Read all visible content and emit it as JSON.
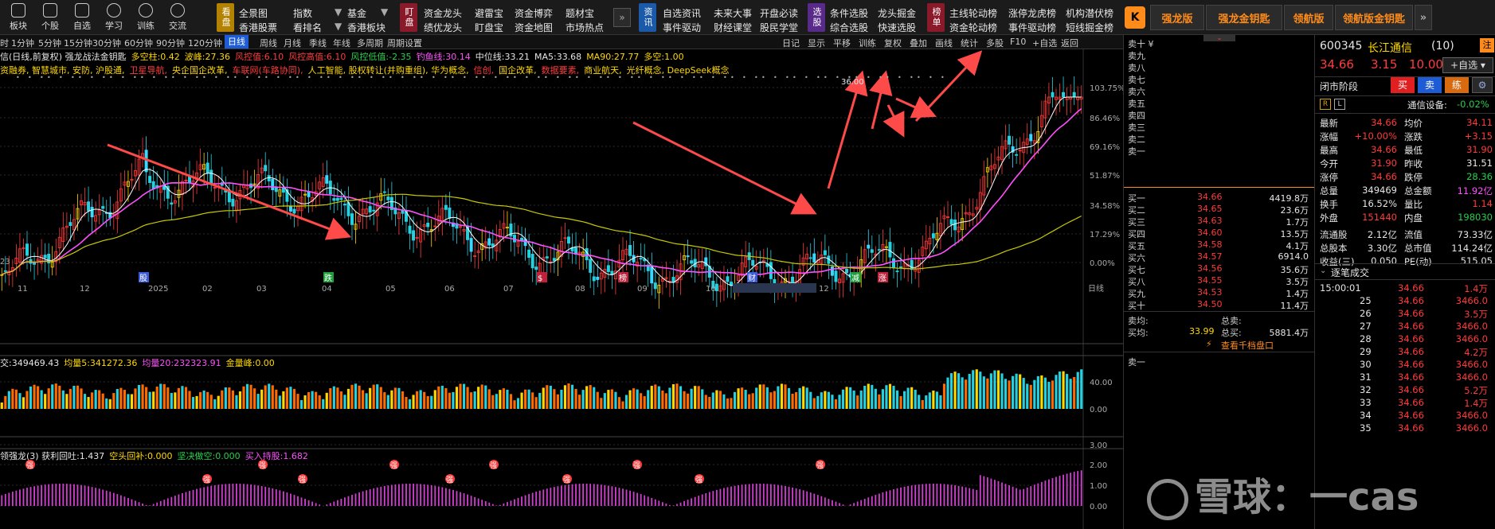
{
  "toolbar": {
    "buttons": [
      "板块",
      "个股",
      "自选",
      "学习",
      "训练",
      "交流"
    ],
    "menu_group1": {
      "tag": "看盘",
      "row1": [
        "全景图",
        "指数",
        "基金"
      ],
      "row2": [
        "香港股票",
        "看排名",
        "香港板块"
      ]
    },
    "menu_group2": {
      "tag": "盯盘",
      "row1": [
        "资金龙头",
        "避雷宝",
        "资金博弈",
        "题材宝"
      ],
      "row2": [
        "绩优龙头",
        "盯盘宝",
        "资金地图",
        "市场热点"
      ]
    },
    "menu_group3": {
      "tag": "资讯",
      "row1": [
        "自选资讯",
        "未来大事",
        "开盘必读"
      ],
      "row2": [
        "事件驱动",
        "财经课堂",
        "股民学堂"
      ]
    },
    "menu_group4": {
      "tag": "选股",
      "row1": [
        "条件选股",
        "龙头掘金"
      ],
      "row2": [
        "综合选股",
        "快速选股"
      ]
    },
    "menu_group5": {
      "tag": "榜单",
      "row1": [
        "主线轮动榜",
        "涨停龙虎榜",
        "机构潜伏榜"
      ],
      "row2": [
        "资金轮动榜",
        "事件驱动榜",
        "短线掘金榜"
      ]
    },
    "right_buttons": [
      "强龙版",
      "强龙金钥匙",
      "领航版",
      "领航版金钥匙"
    ]
  },
  "periods": {
    "left": [
      "时",
      "1分钟",
      "5分钟",
      "15分钟",
      "30分钟",
      "60分钟",
      "90分钟",
      "120分钟",
      "日线",
      "周线",
      "月线",
      "季线",
      "年线",
      "多周期",
      "周期设置"
    ],
    "active": "日线",
    "right": [
      "日记",
      "显示",
      "平移",
      "训练",
      "复权",
      "叠加",
      "画线",
      "统计",
      "多股",
      "F10",
      "+自选",
      "返回"
    ]
  },
  "indicator_line1": [
    {
      "text": "信(日线,前复权) 强龙战法金钥匙",
      "color": "#e6e6e6"
    },
    {
      "text": "多空柱:0.42",
      "color": "#ffd800"
    },
    {
      "text": "波峰:27.36",
      "color": "#ffd800"
    },
    {
      "text": "风控值:6.10",
      "color": "#ff3b3b"
    },
    {
      "text": "风控高值:6.10",
      "color": "#ff3b3b"
    },
    {
      "text": "风控低值:-2.35",
      "color": "#25d14a"
    },
    {
      "text": "钓鱼线:30.14",
      "color": "#ff50ff"
    },
    {
      "text": "中位线:33.21",
      "color": "#e6e6e6"
    },
    {
      "text": "MA5:33.68",
      "color": "#e6e6e6"
    },
    {
      "text": "MA90:27.77",
      "color": "#ffd800"
    },
    {
      "text": "多空:1.00",
      "color": "#ffd800"
    }
  ],
  "indicator_line2": [
    {
      "text": "资融券, 智慧城市, 安防, 沪股通,",
      "color": "#ffd800"
    },
    {
      "text": "卫星导航,",
      "color": "#ff3b3b"
    },
    {
      "text": "央企国企改革,",
      "color": "#ffd800"
    },
    {
      "text": "车联网(车路协同),",
      "color": "#ff3b3b"
    },
    {
      "text": "人工智能, 股权转让(并购重组), 华为概念,",
      "color": "#ffd800"
    },
    {
      "text": "信创,",
      "color": "#ff3b3b"
    },
    {
      "text": "国企改革,",
      "color": "#ffd800"
    },
    {
      "text": "数据要素,",
      "color": "#ff3b3b"
    },
    {
      "text": "商业航天,",
      "color": "#ffd800"
    },
    {
      "text": "光纤概念, DeepSeek概念",
      "color": "#ffd800"
    }
  ],
  "price_axis": [
    "103.75%",
    "86.46%",
    "69.16%",
    "51.87%",
    "34.58%",
    "17.29%",
    "0.00%"
  ],
  "peak_label": "36.00",
  "x_axis": [
    "11",
    "12",
    "2025",
    "02",
    "03",
    "04",
    "05",
    "06",
    "07",
    "08",
    "09",
    "10",
    "11",
    "12"
  ],
  "event_marks": [
    {
      "label": "股",
      "color": "#3a5bd9"
    },
    {
      "label": "跌",
      "color": "#1e9e3a"
    },
    {
      "label": "$",
      "color": "#c0203a"
    },
    {
      "label": "榜",
      "color": "#c0203a"
    },
    {
      "label": "财",
      "color": "#3a5bd9"
    },
    {
      "label": "减",
      "color": "#1e9e3a"
    },
    {
      "label": "涨",
      "color": "#c0203a"
    }
  ],
  "axis_right_label": "日线",
  "left_edge_value": "23",
  "volume_info": [
    {
      "text": "交:349469.43",
      "color": "#e6e6e6"
    },
    {
      "text": "均量5:341272.36",
      "color": "#ffd800"
    },
    {
      "text": "均量20:232323.91",
      "color": "#ff50ff"
    },
    {
      "text": "金量峰:0.00",
      "color": "#ffd800"
    }
  ],
  "volume_axis": [
    "40.00",
    "0.00"
  ],
  "osc_info": [
    {
      "text": "领强龙(3) 获利回吐:1.437",
      "color": "#e6e6e6"
    },
    {
      "text": "空头回补:0.000",
      "color": "#ffd800"
    },
    {
      "text": "坚决做空:0.000",
      "color": "#25d14a"
    },
    {
      "text": "买入持股:1.682",
      "color": "#ff50ff"
    }
  ],
  "osc_axis": [
    "3.00",
    "2.00",
    "1.00",
    "0.00"
  ],
  "osc_marker": "强",
  "orderbook": {
    "sell_levels": [
      "卖十 ¥",
      "卖九",
      "卖八",
      "卖七",
      "卖六",
      "卖五",
      "卖四",
      "卖三",
      "卖二",
      "卖一"
    ],
    "buy_levels": [
      {
        "name": "买一",
        "price": "34.66",
        "vol": "4419.8万"
      },
      {
        "name": "买二",
        "price": "34.65",
        "vol": "23.6万"
      },
      {
        "name": "买三",
        "price": "34.63",
        "vol": "1.7万"
      },
      {
        "name": "买四",
        "price": "34.60",
        "vol": "13.5万"
      },
      {
        "name": "买五",
        "price": "34.58",
        "vol": "4.1万"
      },
      {
        "name": "买六",
        "price": "34.57",
        "vol": "6914.0"
      },
      {
        "name": "买七",
        "price": "34.56",
        "vol": "35.6万"
      },
      {
        "name": "买八",
        "price": "34.55",
        "vol": "3.5万"
      },
      {
        "name": "买九",
        "price": "34.53",
        "vol": "1.4万"
      },
      {
        "name": "买十",
        "price": "34.50",
        "vol": "11.4万"
      }
    ],
    "sell_avg_label": "卖均:",
    "buy_avg_label": "买均:",
    "buy_avg": "33.99",
    "total_sell_label": "总卖:",
    "total_buy_label": "总买:",
    "total_buy": "5881.4万",
    "more_link": "查看千档盘口",
    "sell_one_bottom": "卖一"
  },
  "quote": {
    "code": "600345",
    "name": "长江通信",
    "count": "(10)",
    "badge": "注",
    "price": "34.66",
    "change": "3.15",
    "pct": "10.00%",
    "add_fav": "+自选",
    "stage": "闭市阶段",
    "buy_btn": "买",
    "sell_btn": "卖",
    "practice_btn": "练",
    "r_label": "R",
    "l_label": "L",
    "device_label": "通信设备:",
    "device_pct": "-0.02%",
    "rows": [
      {
        "l1": "最新",
        "v1": "34.66",
        "c1": "red",
        "l2": "均价",
        "v2": "34.11",
        "c2": "red"
      },
      {
        "l1": "涨幅",
        "v1": "+10.00%",
        "c1": "red",
        "l2": "涨跌",
        "v2": "+3.15",
        "c2": "red"
      },
      {
        "l1": "最高",
        "v1": "34.66",
        "c1": "red",
        "l2": "最低",
        "v2": "31.90",
        "c2": "red"
      },
      {
        "l1": "今开",
        "v1": "31.90",
        "c1": "red",
        "l2": "昨收",
        "v2": "31.51",
        "c2": "white"
      },
      {
        "l1": "涨停",
        "v1": "34.66",
        "c1": "red",
        "l2": "跌停",
        "v2": "28.36",
        "c2": "green"
      },
      {
        "l1": "总量",
        "v1": "349469",
        "c1": "white",
        "l2": "总金额",
        "v2": "11.92亿",
        "c2": "mag"
      },
      {
        "l1": "换手",
        "v1": "16.52%",
        "c1": "white",
        "l2": "量比",
        "v2": "1.14",
        "c2": "red"
      },
      {
        "l1": "外盘",
        "v1": "151440",
        "c1": "red",
        "l2": "内盘",
        "v2": "198030",
        "c2": "green"
      },
      {
        "l1": "流通股",
        "v1": "2.12亿",
        "c1": "white",
        "l2": "流值",
        "v2": "73.33亿",
        "c2": "white"
      },
      {
        "l1": "总股本",
        "v1": "3.30亿",
        "c1": "white",
        "l2": "总市值",
        "v2": "114.24亿",
        "c2": "white"
      },
      {
        "l1": "收益(三)",
        "v1": "0.050",
        "c1": "white",
        "l2": "PE(动)",
        "v2": "515.05",
        "c2": "white"
      }
    ],
    "trades_title": "逐笔成交",
    "trades": [
      {
        "t": "15:00:01",
        "p": "34.66",
        "v": "1.4万"
      },
      {
        "t": "25",
        "p": "34.66",
        "v": "3466.0"
      },
      {
        "t": "26",
        "p": "34.66",
        "v": "3.5万"
      },
      {
        "t": "27",
        "p": "34.66",
        "v": "3466.0"
      },
      {
        "t": "28",
        "p": "34.66",
        "v": "3466.0"
      },
      {
        "t": "29",
        "p": "34.66",
        "v": "4.2万"
      },
      {
        "t": "30",
        "p": "34.66",
        "v": "3466.0"
      },
      {
        "t": "31",
        "p": "34.66",
        "v": "3466.0"
      },
      {
        "t": "32",
        "p": "34.66",
        "v": "5.2万"
      },
      {
        "t": "33",
        "p": "34.66",
        "v": "1.4万"
      },
      {
        "t": "34",
        "p": "34.66",
        "v": "3466.0"
      },
      {
        "t": "35",
        "p": "34.66",
        "v": "3466.0"
      }
    ]
  },
  "watermark": "雪球：一cas"
}
